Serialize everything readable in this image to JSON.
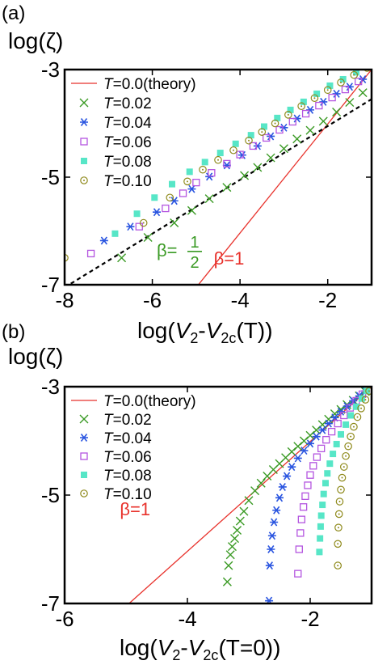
{
  "figure": {
    "panel_labels": [
      "(a)",
      "(b)"
    ]
  },
  "colors": {
    "theory": "#e8322c",
    "T002": "#3a9a24",
    "T004": "#2a55e0",
    "T006": "#b455e0",
    "T008": "#57e6c7",
    "T010": "#8f8a1c",
    "guide": "#000000"
  },
  "chart_data": [
    {
      "type": "scatter",
      "panel": "(a)",
      "ylabel": "log(ζ)",
      "xlabel": "log(V2-V2c(T))",
      "xlim": [
        -8,
        -1
      ],
      "ylim": [
        -7,
        -3
      ],
      "xticks": [
        "-8",
        "-6",
        "-4",
        "-2"
      ],
      "xtick_values": [
        -8,
        -6,
        -4,
        -2
      ],
      "yticks": [
        "-3",
        "-5",
        "-7"
      ],
      "ytick_values": [
        -3,
        -5,
        -7
      ],
      "legend_placement": "top-left",
      "annotations": [
        {
          "text_prefix": "β=",
          "numerator": "1",
          "denominator": "2",
          "x": -5.9,
          "y": -6.35,
          "color": "#3a9a24"
        },
        {
          "text": "β=1",
          "x": -4.6,
          "y": -6.5,
          "color": "#e8322c"
        }
      ],
      "theory_line": {
        "name": "T=0.0(theory)",
        "x": [
          -4.95,
          -1.0
        ],
        "y": [
          -7.0,
          -3.0
        ]
      },
      "guide_line": {
        "x": [
          -8.0,
          -1.0
        ],
        "y": [
          -7.05,
          -3.55
        ]
      },
      "series": [
        {
          "name": "T=0.02",
          "marker": "x",
          "color_key": "T002",
          "x": [
            -6.7,
            -6.1,
            -5.5,
            -5.1,
            -4.7,
            -4.3,
            -3.9,
            -3.6,
            -3.3,
            -3.0,
            -2.7,
            -2.4,
            -2.1,
            -1.8,
            -1.5,
            -1.2
          ],
          "y": [
            -6.5,
            -6.12,
            -5.85,
            -5.62,
            -5.4,
            -5.19,
            -4.97,
            -4.82,
            -4.64,
            -4.47,
            -4.29,
            -4.13,
            -3.96,
            -3.79,
            -3.61,
            -3.43
          ]
        },
        {
          "name": "T=0.04",
          "marker": "asterisk",
          "color_key": "T004",
          "x": [
            -7.1,
            -6.5,
            -5.9,
            -5.5,
            -5.1,
            -4.7,
            -4.3,
            -3.95,
            -3.6,
            -3.3,
            -3.0,
            -2.7,
            -2.4,
            -2.1,
            -1.8,
            -1.5,
            -1.2
          ],
          "y": [
            -6.18,
            -5.92,
            -5.65,
            -5.44,
            -5.22,
            -4.99,
            -4.78,
            -4.59,
            -4.42,
            -4.24,
            -4.08,
            -3.91,
            -3.75,
            -3.6,
            -3.45,
            -3.32,
            -3.18
          ]
        },
        {
          "name": "T=0.06",
          "marker": "square-open",
          "color_key": "T006",
          "x": [
            -7.4,
            -6.3,
            -5.7,
            -5.3,
            -5.0,
            -4.65,
            -4.3,
            -4.0,
            -3.7,
            -3.4,
            -3.1,
            -2.8,
            -2.5,
            -2.2,
            -1.9,
            -1.6,
            -1.3
          ],
          "y": [
            -6.42,
            -5.92,
            -5.58,
            -5.3,
            -5.1,
            -4.92,
            -4.75,
            -4.58,
            -4.42,
            -4.27,
            -4.12,
            -3.97,
            -3.82,
            -3.67,
            -3.52,
            -3.37,
            -3.22
          ]
        },
        {
          "name": "T=0.08",
          "marker": "square-filled",
          "color_key": "T008",
          "x": [
            -6.85,
            -6.35,
            -5.95,
            -5.55,
            -5.15,
            -4.8,
            -4.45,
            -4.1,
            -3.75,
            -3.45,
            -3.15,
            -2.85,
            -2.55,
            -2.25,
            -1.95,
            -1.65,
            -1.35
          ],
          "y": [
            -6.05,
            -5.68,
            -5.38,
            -5.13,
            -4.9,
            -4.72,
            -4.55,
            -4.38,
            -4.22,
            -4.06,
            -3.9,
            -3.75,
            -3.6,
            -3.45,
            -3.3,
            -3.18,
            -3.05
          ]
        },
        {
          "name": "T=0.10",
          "marker": "circle-dot",
          "color_key": "T010",
          "x": [
            -8.0,
            -6.2,
            -5.6,
            -5.2,
            -4.85,
            -4.5,
            -4.15,
            -3.8,
            -3.5,
            -3.2,
            -2.9,
            -2.6,
            -2.3,
            -2.0,
            -1.7,
            -1.4,
            -1.1
          ],
          "y": [
            -6.5,
            -5.85,
            -5.38,
            -5.08,
            -4.86,
            -4.68,
            -4.5,
            -4.32,
            -4.16,
            -4.0,
            -3.84,
            -3.68,
            -3.53,
            -3.38,
            -3.24,
            -3.1,
            -2.97
          ]
        }
      ]
    },
    {
      "type": "scatter",
      "panel": "(b)",
      "ylabel": "log(ζ)",
      "xlabel": "log(V2-V2c(T=0))",
      "xlim": [
        -6,
        -1
      ],
      "ylim": [
        -7,
        -3
      ],
      "xticks": [
        "-6",
        "-4",
        "-2"
      ],
      "xtick_values": [
        -6,
        -4,
        -2
      ],
      "yticks": [
        "-3",
        "-5",
        "-7"
      ],
      "ytick_values": [
        -3,
        -5,
        -7
      ],
      "legend_placement": "top-left",
      "annotations": [
        {
          "text": "β=1",
          "x": -5.1,
          "y": -5.25,
          "color": "#e8322c"
        }
      ],
      "theory_line": {
        "name": "T=0.0(theory)",
        "x": [
          -4.95,
          -1.0
        ],
        "y": [
          -7.0,
          -3.0
        ]
      },
      "series": [
        {
          "name": "T=0.02",
          "marker": "x",
          "color_key": "T002",
          "x": [
            -3.35,
            -3.33,
            -3.3,
            -3.27,
            -3.23,
            -3.19,
            -3.14,
            -3.08,
            -3.0,
            -2.9,
            -2.8,
            -2.7,
            -2.6,
            -2.5,
            -2.4,
            -2.3,
            -2.2,
            -2.1,
            -2.0,
            -1.9,
            -1.8,
            -1.7,
            -1.6,
            -1.5,
            -1.4,
            -1.3,
            -1.2,
            -1.1
          ],
          "y": [
            -6.6,
            -6.3,
            -6.1,
            -5.95,
            -5.8,
            -5.65,
            -5.48,
            -5.3,
            -5.1,
            -4.92,
            -4.78,
            -4.65,
            -4.53,
            -4.42,
            -4.31,
            -4.2,
            -4.1,
            -4.0,
            -3.9,
            -3.8,
            -3.7,
            -3.6,
            -3.5,
            -3.42,
            -3.33,
            -3.25,
            -3.17,
            -3.09
          ]
        },
        {
          "name": "T=0.04",
          "marker": "asterisk",
          "color_key": "T004",
          "x": [
            -2.67,
            -2.66,
            -2.64,
            -2.62,
            -2.59,
            -2.55,
            -2.5,
            -2.45,
            -2.38,
            -2.3,
            -2.2,
            -2.1,
            -2.0,
            -1.9,
            -1.8,
            -1.7,
            -1.6,
            -1.5,
            -1.4,
            -1.3,
            -1.2,
            -1.1
          ],
          "y": [
            -6.95,
            -6.3,
            -6.0,
            -5.75,
            -5.5,
            -5.28,
            -5.05,
            -4.85,
            -4.65,
            -4.48,
            -4.32,
            -4.18,
            -4.05,
            -3.92,
            -3.8,
            -3.68,
            -3.57,
            -3.46,
            -3.36,
            -3.26,
            -3.17,
            -3.08
          ]
        },
        {
          "name": "T=0.06",
          "marker": "square-open",
          "color_key": "T006",
          "x": [
            -2.2,
            -2.18,
            -2.16,
            -2.14,
            -2.11,
            -2.08,
            -2.04,
            -2.0,
            -1.95,
            -1.89,
            -1.82,
            -1.74,
            -1.65,
            -1.55,
            -1.45,
            -1.35,
            -1.25,
            -1.15
          ],
          "y": [
            -6.45,
            -6.0,
            -5.7,
            -5.45,
            -5.22,
            -5.02,
            -4.82,
            -4.63,
            -4.46,
            -4.3,
            -4.14,
            -3.98,
            -3.83,
            -3.68,
            -3.53,
            -3.39,
            -3.26,
            -3.14
          ]
        },
        {
          "name": "T=0.08",
          "marker": "square-filled",
          "color_key": "T008",
          "x": [
            -1.85,
            -1.84,
            -1.83,
            -1.82,
            -1.8,
            -1.78,
            -1.75,
            -1.72,
            -1.68,
            -1.63,
            -1.57,
            -1.5,
            -1.42,
            -1.34,
            -1.25,
            -1.16,
            -1.08
          ],
          "y": [
            -6.05,
            -5.8,
            -5.58,
            -5.38,
            -5.18,
            -4.98,
            -4.78,
            -4.6,
            -4.42,
            -4.24,
            -4.06,
            -3.88,
            -3.7,
            -3.53,
            -3.37,
            -3.22,
            -3.08
          ]
        },
        {
          "name": "T=0.10",
          "marker": "circle-dot",
          "color_key": "T010",
          "x": [
            -1.55,
            -1.55,
            -1.54,
            -1.53,
            -1.52,
            -1.5,
            -1.48,
            -1.45,
            -1.42,
            -1.38,
            -1.34,
            -1.29,
            -1.23,
            -1.17,
            -1.1,
            -1.04
          ],
          "y": [
            -6.3,
            -5.9,
            -5.6,
            -5.35,
            -5.12,
            -4.9,
            -4.68,
            -4.48,
            -4.28,
            -4.1,
            -3.92,
            -3.74,
            -3.56,
            -3.4,
            -3.24,
            -3.08
          ]
        }
      ]
    }
  ]
}
